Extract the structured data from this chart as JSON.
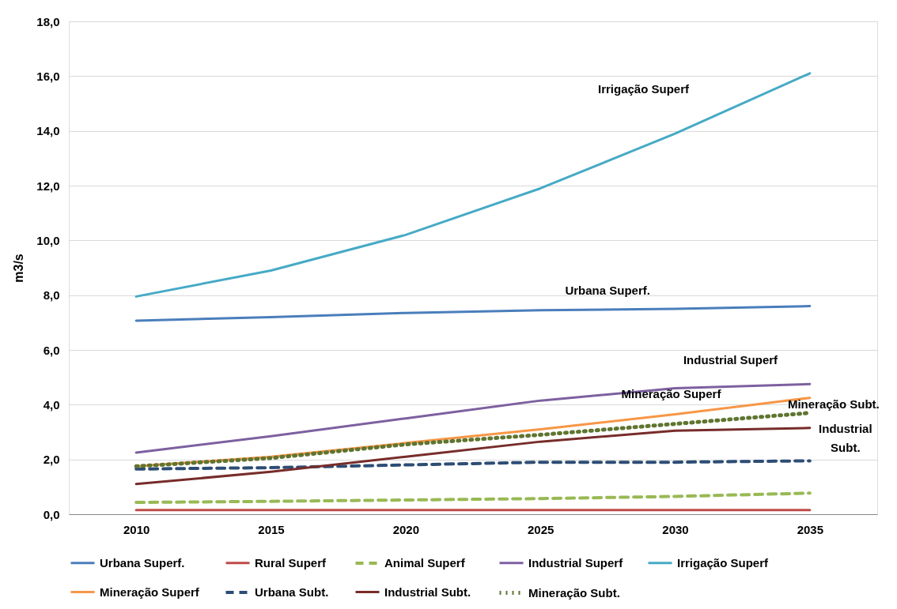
{
  "chart_data": {
    "type": "line",
    "ylabel": "m3/s",
    "categories": [
      "2010",
      "2015",
      "2020",
      "2025",
      "2030",
      "2035"
    ],
    "series": [
      {
        "name": "Urbana Superf.",
        "color": "#4a7ebb",
        "line_style": "solid",
        "values": [
          7.07,
          7.2,
          7.35,
          7.45,
          7.5,
          7.6
        ]
      },
      {
        "name": "Rural Superf",
        "color": "#be4b48",
        "line_style": "solid",
        "values": [
          0.15,
          0.15,
          0.15,
          0.15,
          0.15,
          0.15
        ]
      },
      {
        "name": "Animal Superf",
        "color": "#98b954",
        "line_style": "dashed",
        "values": [
          0.43,
          0.47,
          0.52,
          0.57,
          0.65,
          0.77
        ]
      },
      {
        "name": "Industrial Superf",
        "color": "#7d60a0",
        "line_style": "solid",
        "values": [
          2.25,
          2.85,
          3.5,
          4.15,
          4.6,
          4.75
        ]
      },
      {
        "name": "Irrigação Superf",
        "color": "#46aac5",
        "line_style": "solid",
        "values": [
          7.95,
          8.9,
          10.2,
          11.9,
          13.9,
          16.1
        ]
      },
      {
        "name": "Mineração Superf",
        "color": "#f79646",
        "line_style": "solid",
        "values": [
          1.75,
          2.1,
          2.6,
          3.1,
          3.65,
          4.25
        ]
      },
      {
        "name": "Urbana Subt.",
        "color": "#2c4d75",
        "line_style": "dashed",
        "values": [
          1.65,
          1.7,
          1.8,
          1.9,
          1.9,
          1.95
        ]
      },
      {
        "name": "Industrial Subt.",
        "color": "#772c2a",
        "line_style": "solid",
        "values": [
          1.1,
          1.55,
          2.1,
          2.65,
          3.05,
          3.15
        ]
      },
      {
        "name": "Mineração Subt.",
        "color": "#5f7530",
        "line_style": "dotted",
        "values": [
          1.75,
          2.05,
          2.55,
          2.9,
          3.3,
          3.7
        ]
      }
    ],
    "ylim": [
      0,
      18
    ],
    "yticks": [
      {
        "value": 0,
        "label": "0,0"
      },
      {
        "value": 2,
        "label": "2,0"
      },
      {
        "value": 4,
        "label": "4,0"
      },
      {
        "value": 6,
        "label": "6,0"
      },
      {
        "value": 8,
        "label": "8,0"
      },
      {
        "value": 10,
        "label": "10,0"
      },
      {
        "value": 12,
        "label": "12,0"
      },
      {
        "value": 14,
        "label": "14,0"
      },
      {
        "value": 16,
        "label": "16,0"
      },
      {
        "value": 18,
        "label": "18,0"
      }
    ],
    "annotations": [
      "Irrigação Superf",
      "Urbana Superf.",
      "Industrial Superf",
      "Mineração Superf",
      "Mineração Subt.",
      "Industrial Subt."
    ],
    "grid": "y",
    "legend": "bottom"
  }
}
